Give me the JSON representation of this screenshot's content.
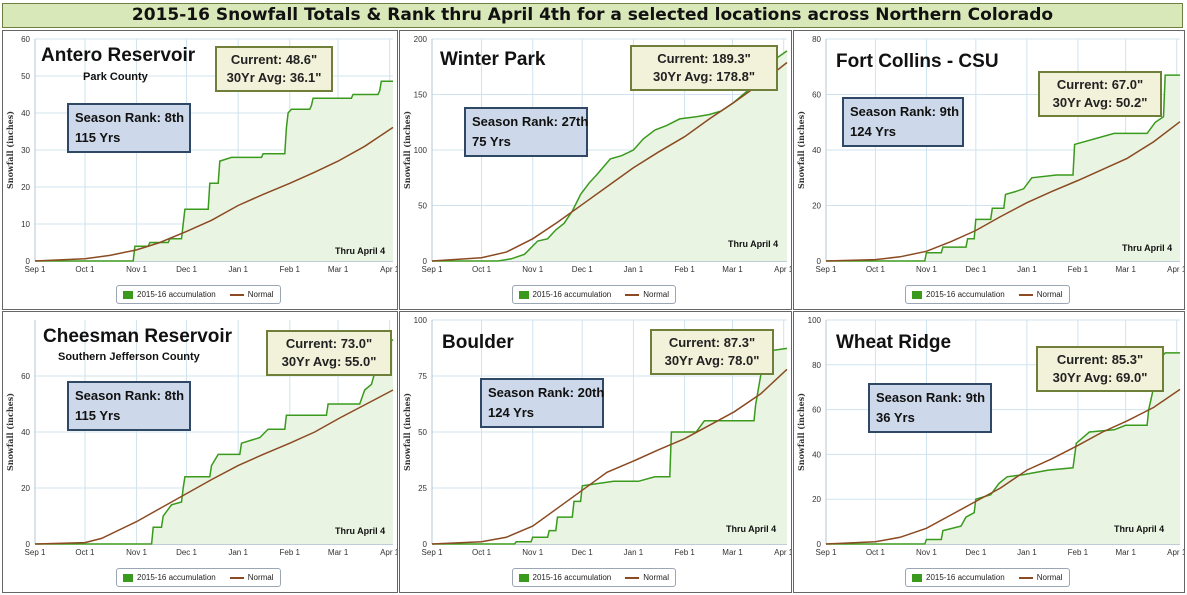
{
  "title": "2015-16 Snowfall Totals & Rank thru April 4th for a selected locations across Northern Colorado",
  "chart_data": [
    {
      "type": "line",
      "name": "Antero Reservoir",
      "subtitle": "Park County",
      "current_label": "Current: 48.6\"",
      "avg_label": "30Yr Avg: 36.1\"",
      "rank_label": "Season Rank: 8th",
      "years_label": "115 Yrs",
      "thru_label": "Thru April 4",
      "ylabel": "Snowfall (inches)",
      "ylim": [
        0,
        60
      ],
      "yticks": [
        "0",
        "10",
        "20",
        "30",
        "40",
        "50",
        "60"
      ],
      "xticks": [
        "Sep 1",
        "Oct 1",
        "Nov 1",
        "Dec 1",
        "Jan 1",
        "Feb 1",
        "Mar 1",
        "Apr 1"
      ],
      "legend": [
        "2015-16 accumulation",
        "Normal"
      ],
      "season": [
        [
          0,
          0
        ],
        [
          30,
          0
        ],
        [
          59,
          0
        ],
        [
          60,
          4
        ],
        [
          68,
          4
        ],
        [
          69,
          5
        ],
        [
          80,
          5
        ],
        [
          81,
          6
        ],
        [
          88,
          6
        ],
        [
          89,
          10
        ],
        [
          90,
          14
        ],
        [
          104,
          14
        ],
        [
          105,
          21
        ],
        [
          110,
          21
        ],
        [
          111,
          27
        ],
        [
          118,
          28
        ],
        [
          136,
          28
        ],
        [
          137,
          29
        ],
        [
          150,
          29
        ],
        [
          151,
          36
        ],
        [
          152,
          40
        ],
        [
          154,
          41
        ],
        [
          165,
          41
        ],
        [
          166,
          42
        ],
        [
          167,
          44
        ],
        [
          190,
          44
        ],
        [
          191,
          45
        ],
        [
          206,
          45
        ],
        [
          207,
          46
        ],
        [
          208,
          48.6
        ],
        [
          215,
          48.6
        ]
      ],
      "normal": [
        [
          0,
          0
        ],
        [
          30,
          0.6
        ],
        [
          45,
          1.5
        ],
        [
          61,
          3
        ],
        [
          75,
          5
        ],
        [
          91,
          8
        ],
        [
          106,
          11
        ],
        [
          122,
          15
        ],
        [
          137,
          18
        ],
        [
          153,
          21
        ],
        [
          168,
          24
        ],
        [
          182,
          27
        ],
        [
          198,
          31
        ],
        [
          215,
          36.1
        ]
      ]
    },
    {
      "type": "line",
      "name": "Winter Park",
      "subtitle": "",
      "current_label": "Current: 189.3\"",
      "avg_label": "30Yr Avg: 178.8\"",
      "rank_label": "Season Rank: 27th",
      "years_label": "75 Yrs",
      "thru_label": "Thru April 4",
      "ylabel": "Snowfall (inches)",
      "ylim": [
        0,
        200
      ],
      "yticks": [
        "0",
        "50",
        "100",
        "150",
        "200"
      ],
      "xticks": [
        "Sep 1",
        "Oct 1",
        "Nov 1",
        "Dec 1",
        "Jan 1",
        "Feb 1",
        "Mar 1",
        "Apr 1"
      ],
      "legend": [
        "2015-16 accumulation",
        "Normal"
      ],
      "season": [
        [
          0,
          0
        ],
        [
          40,
          0
        ],
        [
          48,
          2
        ],
        [
          56,
          6
        ],
        [
          60,
          12
        ],
        [
          64,
          18
        ],
        [
          70,
          20
        ],
        [
          75,
          28
        ],
        [
          80,
          34
        ],
        [
          85,
          45
        ],
        [
          90,
          60
        ],
        [
          95,
          70
        ],
        [
          100,
          78
        ],
        [
          108,
          92
        ],
        [
          115,
          95
        ],
        [
          122,
          100
        ],
        [
          128,
          110
        ],
        [
          135,
          118
        ],
        [
          142,
          122
        ],
        [
          150,
          128
        ],
        [
          160,
          130
        ],
        [
          168,
          132
        ],
        [
          175,
          135
        ],
        [
          182,
          142
        ],
        [
          190,
          152
        ],
        [
          198,
          162
        ],
        [
          204,
          170
        ],
        [
          208,
          182
        ],
        [
          215,
          189.3
        ]
      ],
      "normal": [
        [
          0,
          0
        ],
        [
          30,
          3
        ],
        [
          45,
          8
        ],
        [
          61,
          20
        ],
        [
          76,
          35
        ],
        [
          92,
          52
        ],
        [
          107,
          68
        ],
        [
          122,
          84
        ],
        [
          137,
          98
        ],
        [
          153,
          112
        ],
        [
          168,
          128
        ],
        [
          183,
          143
        ],
        [
          199,
          160
        ],
        [
          215,
          178.8
        ]
      ]
    },
    {
      "type": "line",
      "name": "Fort Collins - CSU",
      "subtitle": "",
      "current_label": "Current: 67.0\"",
      "avg_label": "30Yr Avg: 50.2\"",
      "rank_label": "Season Rank: 9th",
      "years_label": "124 Yrs",
      "thru_label": "Thru April 4",
      "ylabel": "Snowfall (inches)",
      "ylim": [
        0,
        80
      ],
      "yticks": [
        "0",
        "20",
        "40",
        "60",
        "80"
      ],
      "xticks": [
        "Sep 1",
        "Oct 1",
        "Nov 1",
        "Dec 1",
        "Jan 1",
        "Feb 1",
        "Mar 1",
        "Apr 1"
      ],
      "legend": [
        "2015-16 accumulation",
        "Normal"
      ],
      "season": [
        [
          0,
          0
        ],
        [
          60,
          0
        ],
        [
          61,
          3
        ],
        [
          70,
          3
        ],
        [
          71,
          5
        ],
        [
          85,
          5
        ],
        [
          86,
          8
        ],
        [
          90,
          8
        ],
        [
          91,
          15
        ],
        [
          100,
          15
        ],
        [
          101,
          19
        ],
        [
          108,
          19
        ],
        [
          109,
          24
        ],
        [
          115,
          25
        ],
        [
          120,
          26
        ],
        [
          125,
          30
        ],
        [
          140,
          31
        ],
        [
          150,
          31
        ],
        [
          151,
          42
        ],
        [
          175,
          46
        ],
        [
          195,
          46
        ],
        [
          200,
          50
        ],
        [
          205,
          52
        ],
        [
          206,
          67
        ],
        [
          215,
          67
        ]
      ],
      "normal": [
        [
          0,
          0
        ],
        [
          30,
          0.5
        ],
        [
          45,
          1.5
        ],
        [
          61,
          3.5
        ],
        [
          76,
          7
        ],
        [
          91,
          11
        ],
        [
          106,
          16
        ],
        [
          122,
          21
        ],
        [
          137,
          25
        ],
        [
          153,
          29
        ],
        [
          168,
          33
        ],
        [
          183,
          37
        ],
        [
          199,
          43
        ],
        [
          215,
          50.2
        ]
      ]
    },
    {
      "type": "line",
      "name": "Cheesman Reservoir",
      "subtitle": "Southern Jefferson County",
      "current_label": "Current: 73.0\"",
      "avg_label": "30Yr Avg: 55.0\"",
      "rank_label": "Season Rank: 8th",
      "years_label": "115 Yrs",
      "thru_label": "Thru April 4",
      "ylabel": "Snowfall (inches)",
      "ylim": [
        0,
        80
      ],
      "yticks": [
        "0",
        "20",
        "40",
        "60"
      ],
      "xticks": [
        "Sep 1",
        "Oct 1",
        "Nov 1",
        "Dec 1",
        "Jan 1",
        "Feb 1",
        "Mar 1",
        "Apr 1"
      ],
      "legend": [
        "2015-16 accumulation",
        "Normal"
      ],
      "season": [
        [
          0,
          0
        ],
        [
          70,
          0
        ],
        [
          71,
          6
        ],
        [
          76,
          6
        ],
        [
          77,
          10
        ],
        [
          82,
          14
        ],
        [
          88,
          15
        ],
        [
          89,
          20
        ],
        [
          90,
          24
        ],
        [
          105,
          24
        ],
        [
          106,
          28
        ],
        [
          110,
          32
        ],
        [
          123,
          32
        ],
        [
          124,
          36
        ],
        [
          135,
          38
        ],
        [
          140,
          41
        ],
        [
          150,
          41
        ],
        [
          151,
          46
        ],
        [
          175,
          46
        ],
        [
          176,
          50
        ],
        [
          195,
          50
        ],
        [
          198,
          55
        ],
        [
          202,
          57
        ],
        [
          205,
          63
        ],
        [
          208,
          70
        ],
        [
          215,
          73
        ]
      ],
      "normal": [
        [
          0,
          0
        ],
        [
          30,
          0.5
        ],
        [
          40,
          2
        ],
        [
          61,
          8
        ],
        [
          76,
          13
        ],
        [
          91,
          18
        ],
        [
          106,
          23
        ],
        [
          122,
          28
        ],
        [
          137,
          32
        ],
        [
          153,
          36
        ],
        [
          168,
          40
        ],
        [
          183,
          45
        ],
        [
          199,
          50
        ],
        [
          215,
          55
        ]
      ]
    },
    {
      "type": "line",
      "name": "Boulder",
      "subtitle": "",
      "current_label": "Current: 87.3\"",
      "avg_label": "30Yr Avg: 78.0\"",
      "rank_label": "Season Rank: 20th",
      "years_label": "124 Yrs",
      "thru_label": "Thru April 4",
      "ylabel": "Snowfall (inches)",
      "ylim": [
        0,
        100
      ],
      "yticks": [
        "0",
        "25",
        "50",
        "75",
        "100"
      ],
      "xticks": [
        "Sep 1",
        "Oct 1",
        "Nov 1",
        "Dec 1",
        "Jan 1",
        "Feb 1",
        "Mar 1",
        "Apr 1"
      ],
      "legend": [
        "2015-16 accumulation",
        "Normal"
      ],
      "season": [
        [
          0,
          0
        ],
        [
          50,
          0
        ],
        [
          51,
          1
        ],
        [
          60,
          1
        ],
        [
          61,
          3
        ],
        [
          70,
          3
        ],
        [
          71,
          6
        ],
        [
          75,
          6
        ],
        [
          76,
          12
        ],
        [
          85,
          12
        ],
        [
          86,
          19
        ],
        [
          90,
          19
        ],
        [
          91,
          26
        ],
        [
          110,
          28
        ],
        [
          125,
          28
        ],
        [
          135,
          30
        ],
        [
          144,
          30
        ],
        [
          145,
          50
        ],
        [
          160,
          50
        ],
        [
          165,
          55
        ],
        [
          195,
          55
        ],
        [
          196,
          62
        ],
        [
          199,
          75
        ],
        [
          202,
          86
        ],
        [
          215,
          87.3
        ]
      ],
      "normal": [
        [
          0,
          0
        ],
        [
          30,
          1
        ],
        [
          45,
          3
        ],
        [
          61,
          8
        ],
        [
          76,
          16
        ],
        [
          91,
          24
        ],
        [
          106,
          32
        ],
        [
          122,
          37
        ],
        [
          137,
          42
        ],
        [
          153,
          47
        ],
        [
          168,
          53
        ],
        [
          183,
          59
        ],
        [
          199,
          67
        ],
        [
          215,
          78
        ]
      ]
    },
    {
      "type": "line",
      "name": "Wheat Ridge",
      "subtitle": "",
      "current_label": "Current: 85.3\"",
      "avg_label": "30Yr Avg: 69.0\"",
      "rank_label": "Season Rank: 9th",
      "years_label": "36 Yrs",
      "thru_label": "Thru April 4",
      "ylabel": "Snowfall (inches)",
      "ylim": [
        0,
        100
      ],
      "yticks": [
        "0",
        "20",
        "40",
        "60",
        "80",
        "100"
      ],
      "xticks": [
        "Sep 1",
        "Oct 1",
        "Nov 1",
        "Dec 1",
        "Jan 1",
        "Feb 1",
        "Mar 1",
        "Apr 1"
      ],
      "legend": [
        "2015-16 accumulation",
        "Normal"
      ],
      "season": [
        [
          0,
          0
        ],
        [
          60,
          0
        ],
        [
          61,
          2
        ],
        [
          70,
          2
        ],
        [
          71,
          6
        ],
        [
          82,
          8
        ],
        [
          85,
          12
        ],
        [
          90,
          14
        ],
        [
          91,
          20
        ],
        [
          100,
          22
        ],
        [
          105,
          27
        ],
        [
          110,
          30
        ],
        [
          120,
          31
        ],
        [
          135,
          33
        ],
        [
          150,
          34
        ],
        [
          152,
          45
        ],
        [
          160,
          50
        ],
        [
          175,
          51
        ],
        [
          182,
          53
        ],
        [
          195,
          53
        ],
        [
          196,
          60
        ],
        [
          199,
          70
        ],
        [
          202,
          82
        ],
        [
          206,
          85.3
        ],
        [
          215,
          85.3
        ]
      ],
      "normal": [
        [
          0,
          0
        ],
        [
          30,
          1
        ],
        [
          45,
          3
        ],
        [
          61,
          7
        ],
        [
          76,
          13
        ],
        [
          91,
          19
        ],
        [
          106,
          25
        ],
        [
          122,
          33
        ],
        [
          137,
          38
        ],
        [
          153,
          44
        ],
        [
          168,
          50
        ],
        [
          183,
          55
        ],
        [
          199,
          61
        ],
        [
          215,
          69
        ]
      ]
    }
  ]
}
